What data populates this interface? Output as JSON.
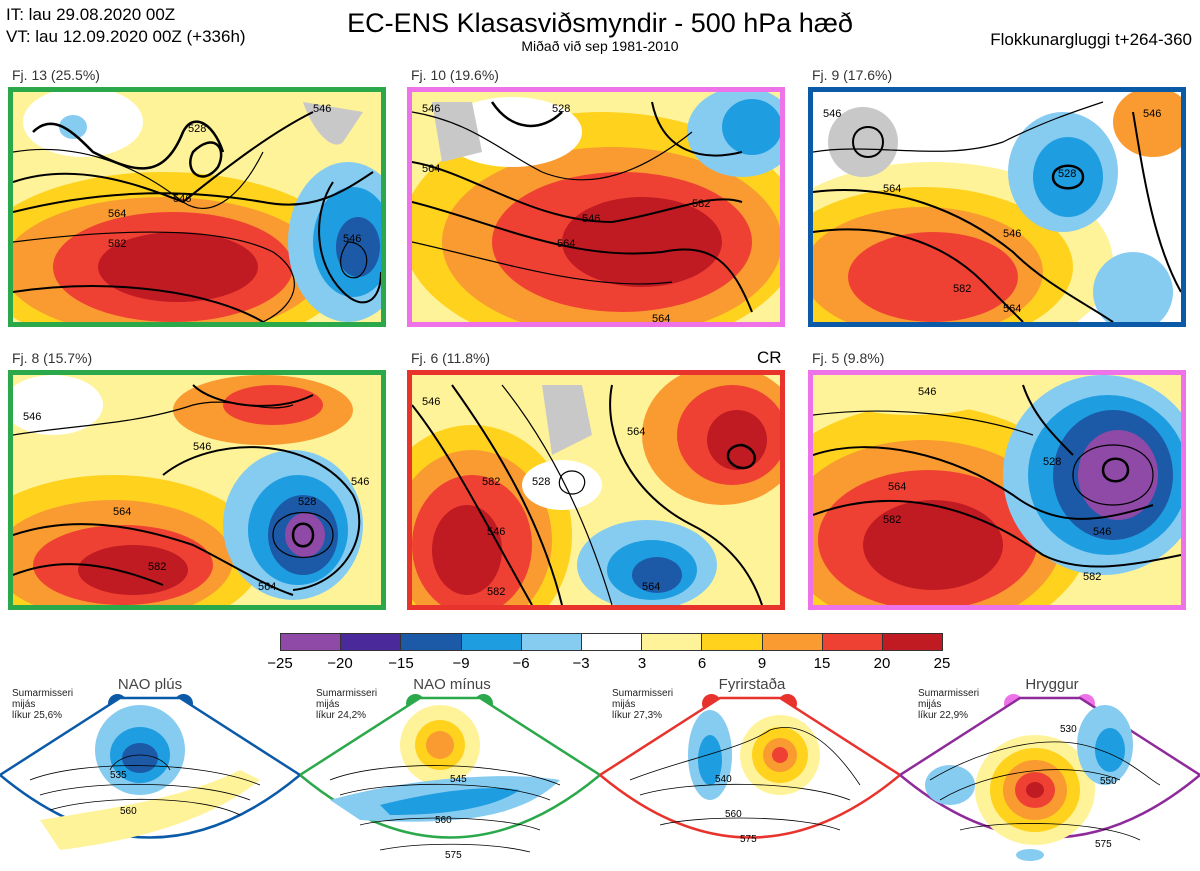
{
  "header": {
    "it_line": "IT: lau 29.08.2020 00Z",
    "vt_line": "VT: lau 12.09.2020 00Z  (+336h)",
    "title": "EC-ENS Klasasviðsmyndir - 500 hPa hæð",
    "subtitle": "Miðað við sep 1981-2010",
    "window": "Flokkunargluggi t+264-360"
  },
  "panels": [
    {
      "label": "Fj. 13 (25.5%)",
      "border": "#2aa84a",
      "contours": [
        "546",
        "528",
        "546",
        "564",
        "582",
        "546",
        "564"
      ]
    },
    {
      "label": "Fj. 10 (19.6%)",
      "border": "#ee72e8",
      "contours": [
        "546",
        "528",
        "564",
        "546",
        "564",
        "582",
        "564"
      ]
    },
    {
      "label": "Fj. 9 (17.6%)",
      "border": "#0b5aa8",
      "contours": [
        "546",
        "564",
        "528",
        "546",
        "582",
        "564",
        "546"
      ]
    },
    {
      "label": "Fj. 8 (15.7%)",
      "border": "#2aa84a",
      "contours": [
        "546",
        "546",
        "564",
        "528",
        "582",
        "564",
        "546"
      ]
    },
    {
      "label": "Fj. 6 (11.8%)",
      "border": "#e8332d",
      "contours": [
        "546",
        "528",
        "582",
        "546",
        "564",
        "582",
        "564"
      ],
      "corner": "CR"
    },
    {
      "label": "Fj. 5 (9.8%)",
      "border": "#ee72e8",
      "contours": [
        "546",
        "528",
        "564",
        "582",
        "546",
        "582"
      ]
    }
  ],
  "colorbar": {
    "colors": [
      "#8e4aa6",
      "#4a2a9a",
      "#1c5aa8",
      "#1e9ee0",
      "#86cbf0",
      "#ffffff",
      "#fff39a",
      "#ffd21e",
      "#f99b31",
      "#ef4133",
      "#c01a22"
    ],
    "ticks": [
      "−25",
      "−20",
      "−15",
      "−9",
      "−6",
      "−3",
      "3",
      "6",
      "9",
      "15",
      "20",
      "25"
    ]
  },
  "regimes": [
    {
      "name": "NAO plús",
      "note": [
        "Sumarmisseri",
        "mijás",
        "líkur 25,6%"
      ],
      "color": "#0b5aa8",
      "contours": [
        "535",
        "560"
      ]
    },
    {
      "name": "NAO mínus",
      "note": [
        "Sumarmisseri",
        "mijás",
        "líkur 24,2%"
      ],
      "color": "#2aa84a",
      "contours": [
        "545",
        "560",
        "575"
      ]
    },
    {
      "name": "Fyrirstaða",
      "note": [
        "Sumarmisseri",
        "mijás",
        "líkur 27,3%"
      ],
      "color": "#e8332d",
      "contours": [
        "540",
        "560",
        "575"
      ]
    },
    {
      "name": "Hryggur",
      "note": [
        "Sumarmisseri",
        "mijás",
        "líkur 22,9%"
      ],
      "color": "#8e2a9a",
      "dot_color": "#ee72e8",
      "contours": [
        "530",
        "550",
        "575"
      ]
    }
  ]
}
